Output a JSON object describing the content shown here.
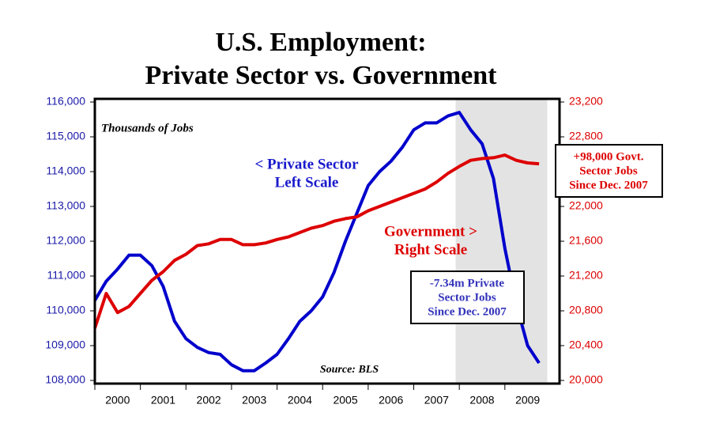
{
  "chart_data": {
    "type": "line",
    "title": [
      "U.S. Employment:",
      "Private Sector vs. Government"
    ],
    "subtitle": "Thousands of Jobs",
    "source": "Source: BLS",
    "x": [
      2000,
      2000.25,
      2000.5,
      2000.75,
      2001,
      2001.25,
      2001.5,
      2001.75,
      2002,
      2002.25,
      2002.5,
      2002.75,
      2003,
      2003.25,
      2003.5,
      2003.75,
      2004,
      2004.25,
      2004.5,
      2004.75,
      2005,
      2005.25,
      2005.5,
      2005.75,
      2006,
      2006.25,
      2006.5,
      2006.75,
      2007,
      2007.25,
      2007.5,
      2007.75,
      2008,
      2008.25,
      2008.5,
      2008.75,
      2009,
      2009.25,
      2009.5,
      2009.75
    ],
    "xlim": [
      2000,
      2010.2
    ],
    "xticks": [
      2000,
      2001,
      2002,
      2003,
      2004,
      2005,
      2006,
      2007,
      2008,
      2009
    ],
    "shaded_span": [
      2007.92,
      2009.93
    ],
    "shade_color": "#e3e3e3",
    "series": [
      {
        "color": "#0000cc",
        "axis": "y",
        "values": [
          110300,
          110850,
          111200,
          111600,
          111600,
          111300,
          110700,
          109700,
          109200,
          108950,
          108800,
          108750,
          108450,
          108280,
          108280,
          108500,
          108750,
          109200,
          109700,
          110000,
          110400,
          111100,
          112000,
          112800,
          113600,
          114000,
          114300,
          114700,
          115200,
          115400,
          115400,
          115600,
          115700,
          115200,
          114800,
          113800,
          111800,
          110200,
          109000,
          108500
        ]
      },
      {
        "color": "#dd0000",
        "axis": "y2",
        "values": [
          20600,
          21000,
          20780,
          20850,
          21000,
          21150,
          21250,
          21380,
          21450,
          21550,
          21570,
          21620,
          21620,
          21560,
          21560,
          21580,
          21620,
          21650,
          21700,
          21750,
          21780,
          21830,
          21860,
          21880,
          21950,
          22000,
          22050,
          22100,
          22150,
          22200,
          22280,
          22380,
          22460,
          22530,
          22550,
          22560,
          22590,
          22530,
          22500,
          22490
        ]
      }
    ],
    "ylim": [
      108000,
      116000
    ],
    "yticks": [
      {
        "value": 108000,
        "label": "108,000"
      },
      {
        "value": 109000,
        "label": "109,000"
      },
      {
        "value": 110000,
        "label": "110,000"
      },
      {
        "value": 111000,
        "label": "111,000"
      },
      {
        "value": 112000,
        "label": "112,000"
      },
      {
        "value": 113000,
        "label": "113,000"
      },
      {
        "value": 114000,
        "label": "114,000"
      },
      {
        "value": 115000,
        "label": "115,000"
      },
      {
        "value": 116000,
        "label": "116,000"
      }
    ],
    "y2lim": [
      20000,
      23200
    ],
    "y2ticks": [
      {
        "value": 20000,
        "label": "20,000"
      },
      {
        "value": 20400,
        "label": "20,400"
      },
      {
        "value": 20800,
        "label": "20,800"
      },
      {
        "value": 21200,
        "label": "21,200"
      },
      {
        "value": 21600,
        "label": "21,600"
      },
      {
        "value": 22000,
        "label": "22,000"
      },
      {
        "value": 22400,
        "label": "22,400"
      },
      {
        "value": 22800,
        "label": "22,800"
      },
      {
        "value": 23200,
        "label": "23,200"
      }
    ],
    "y_color": "#1a1aa8",
    "y2_color": "#dd0000",
    "annotations": [
      {
        "text": [
          "< Private Sector",
          "Left Scale"
        ],
        "color": "#1a1acc"
      },
      {
        "text": [
          "Government >",
          "Right Scale"
        ],
        "color": "#dd0000"
      },
      {
        "text": [
          "+98,000 Govt.",
          "Sector Jobs",
          "Since Dec. 2007"
        ],
        "color": "#dd0000"
      },
      {
        "text": [
          "-7.34m Private",
          "Sector Jobs",
          "Since Dec. 2007"
        ],
        "color": "#3333bb"
      }
    ]
  }
}
